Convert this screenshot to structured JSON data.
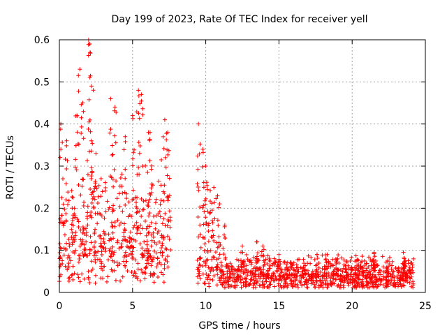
{
  "chart_data": {
    "type": "scatter",
    "title": "Day 199 of 2023, Rate Of TEC Index for receiver yell",
    "xlabel": "GPS time / hours",
    "ylabel": "ROTI / TECUs",
    "xlim": [
      0,
      25
    ],
    "ylim": [
      0,
      0.6
    ],
    "grid": true,
    "marker": "+",
    "color": "#ff0000",
    "x_ticks": [
      0,
      5,
      10,
      15,
      20,
      25
    ],
    "x_tick_labels": [
      "0",
      "5",
      "10",
      "15",
      "20",
      "25"
    ],
    "y_ticks": [
      0,
      0.1,
      0.2,
      0.3,
      0.4,
      0.5,
      0.6
    ],
    "y_tick_labels": [
      "0",
      "0.1",
      "0.2",
      "0.3",
      "0.4",
      "0.5",
      "0.6"
    ],
    "segments": [
      {
        "x_start": 0.0,
        "x_end": 7.6,
        "base": 0.08,
        "spread": 0.22
      },
      {
        "x_start": 9.4,
        "x_end": 11.0,
        "base": 0.05,
        "spread": 0.2
      },
      {
        "x_start": 11.0,
        "x_end": 24.2,
        "base": 0.03,
        "spread": 0.05
      }
    ],
    "peaks": [
      {
        "x": 0.1,
        "y": 0.4
      },
      {
        "x": 0.5,
        "y": 0.36
      },
      {
        "x": 1.2,
        "y": 0.42
      },
      {
        "x": 1.4,
        "y": 0.53
      },
      {
        "x": 1.6,
        "y": 0.45
      },
      {
        "x": 2.0,
        "y": 0.6
      },
      {
        "x": 2.1,
        "y": 0.57
      },
      {
        "x": 2.2,
        "y": 0.49
      },
      {
        "x": 2.5,
        "y": 0.33
      },
      {
        "x": 3.5,
        "y": 0.46
      },
      {
        "x": 3.8,
        "y": 0.44
      },
      {
        "x": 4.5,
        "y": 0.37
      },
      {
        "x": 5.0,
        "y": 0.42
      },
      {
        "x": 5.4,
        "y": 0.48
      },
      {
        "x": 5.6,
        "y": 0.47
      },
      {
        "x": 6.2,
        "y": 0.38
      },
      {
        "x": 7.2,
        "y": 0.41
      },
      {
        "x": 7.4,
        "y": 0.38
      },
      {
        "x": 9.5,
        "y": 0.4
      },
      {
        "x": 9.8,
        "y": 0.34
      },
      {
        "x": 10.0,
        "y": 0.3
      },
      {
        "x": 11.3,
        "y": 0.16
      },
      {
        "x": 12.5,
        "y": 0.11
      },
      {
        "x": 13.5,
        "y": 0.12
      },
      {
        "x": 13.9,
        "y": 0.11
      },
      {
        "x": 15.0,
        "y": 0.09
      },
      {
        "x": 17.6,
        "y": 0.09
      },
      {
        "x": 18.3,
        "y": 0.09
      },
      {
        "x": 19.0,
        "y": 0.08
      },
      {
        "x": 20.6,
        "y": 0.07
      },
      {
        "x": 21.5,
        "y": 0.095
      },
      {
        "x": 23.5,
        "y": 0.095
      },
      {
        "x": 24.0,
        "y": 0.07
      }
    ]
  }
}
